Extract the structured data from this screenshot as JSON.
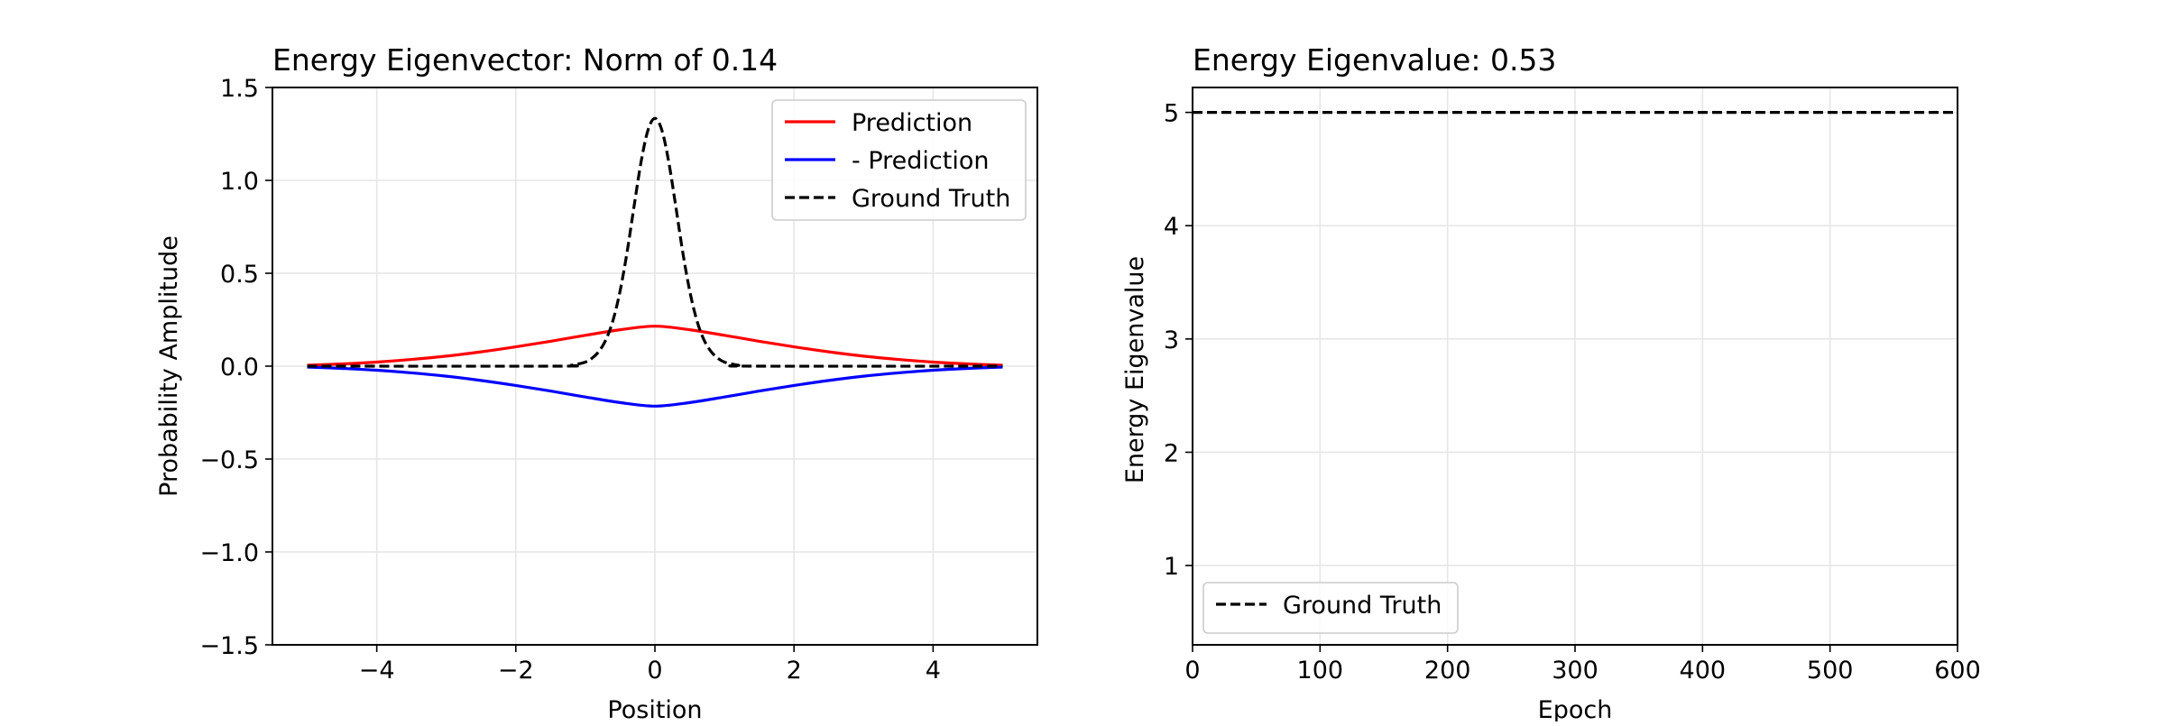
{
  "chart_data": [
    {
      "type": "line",
      "title": "Energy Eigenvector: Norm of 0.14",
      "xlabel": "Position",
      "ylabel": "Probability Amplitude",
      "xlim": [
        -5.5,
        5.5
      ],
      "ylim": [
        -1.5,
        1.5
      ],
      "xticks": [
        -4,
        -2,
        0,
        2,
        4
      ],
      "xtick_labels": [
        "−4",
        "−2",
        "0",
        "2",
        "4"
      ],
      "yticks": [
        -1.5,
        -1.0,
        -0.5,
        0.0,
        0.5,
        1.0,
        1.5
      ],
      "ytick_labels": [
        "−1.5",
        "−1.0",
        "−0.5",
        "0.0",
        "0.5",
        "1.0",
        "1.5"
      ],
      "grid": true,
      "legend_position": "upper right",
      "series": [
        {
          "name": "Prediction",
          "color": "#ff0000",
          "dash": "solid",
          "x": [
            -5.0,
            -4.5,
            -4.0,
            -3.5,
            -3.0,
            -2.5,
            -2.0,
            -1.5,
            -1.0,
            -0.5,
            0.0,
            0.5,
            1.0,
            1.5,
            2.0,
            2.5,
            3.0,
            3.5,
            4.0,
            4.5,
            5.0
          ],
          "y": [
            0.005,
            0.012,
            0.022,
            0.036,
            0.054,
            0.077,
            0.104,
            0.134,
            0.166,
            0.196,
            0.215,
            0.196,
            0.166,
            0.134,
            0.104,
            0.077,
            0.054,
            0.036,
            0.022,
            0.012,
            0.005
          ]
        },
        {
          "name": "- Prediction",
          "color": "#0000ff",
          "dash": "solid",
          "x": [
            -5.0,
            -4.5,
            -4.0,
            -3.5,
            -3.0,
            -2.5,
            -2.0,
            -1.5,
            -1.0,
            -0.5,
            0.0,
            0.5,
            1.0,
            1.5,
            2.0,
            2.5,
            3.0,
            3.5,
            4.0,
            4.5,
            5.0
          ],
          "y": [
            -0.005,
            -0.012,
            -0.022,
            -0.036,
            -0.054,
            -0.077,
            -0.104,
            -0.134,
            -0.166,
            -0.196,
            -0.215,
            -0.196,
            -0.166,
            -0.134,
            -0.104,
            -0.077,
            -0.054,
            -0.036,
            -0.022,
            -0.012,
            -0.005
          ]
        },
        {
          "name": "Ground Truth",
          "color": "#000000",
          "dash": "dashed",
          "x": [
            -5.0,
            -1.4,
            -1.2,
            -1.0,
            -0.9,
            -0.8,
            -0.7,
            -0.6,
            -0.5,
            -0.4,
            -0.3,
            -0.2,
            -0.1,
            0.0,
            0.1,
            0.2,
            0.3,
            0.4,
            0.5,
            0.6,
            0.7,
            0.8,
            0.9,
            1.0,
            1.2,
            1.4,
            5.0
          ],
          "y": [
            0.0,
            0.0,
            0.005,
            0.022,
            0.044,
            0.082,
            0.146,
            0.25,
            0.406,
            0.614,
            0.86,
            1.097,
            1.27,
            1.334,
            1.27,
            1.097,
            0.86,
            0.614,
            0.406,
            0.25,
            0.146,
            0.082,
            0.044,
            0.022,
            0.005,
            0.0,
            0.0
          ]
        }
      ]
    },
    {
      "type": "line",
      "title": "Energy Eigenvalue: 0.53",
      "xlabel": "Epoch",
      "ylabel": "Energy Eigenvalue",
      "xlim": [
        0,
        600
      ],
      "ylim": [
        0.3,
        5.22
      ],
      "xticks": [
        0,
        100,
        200,
        300,
        400,
        500,
        600
      ],
      "xtick_labels": [
        "0",
        "100",
        "200",
        "300",
        "400",
        "500",
        "600"
      ],
      "yticks": [
        1,
        2,
        3,
        4,
        5
      ],
      "ytick_labels": [
        "1",
        "2",
        "3",
        "4",
        "5"
      ],
      "grid": true,
      "legend_position": "lower left",
      "series": [
        {
          "name": "Ground Truth",
          "color": "#000000",
          "dash": "dashed",
          "x": [
            0,
            600
          ],
          "y": [
            5.0,
            5.0
          ]
        }
      ]
    }
  ]
}
